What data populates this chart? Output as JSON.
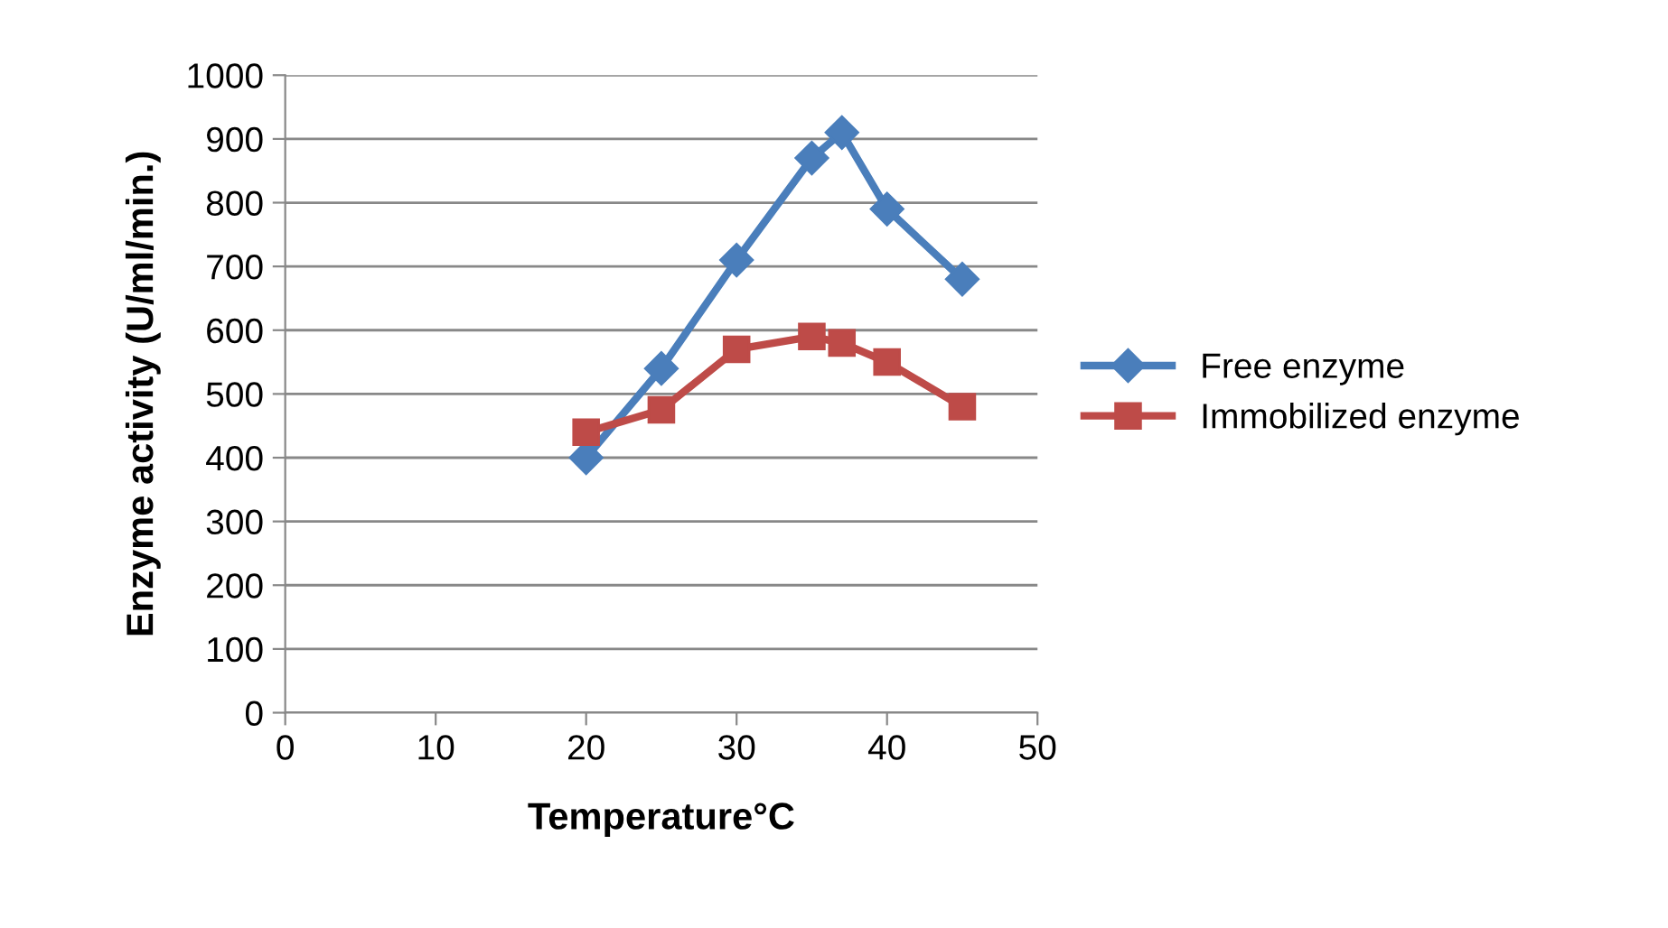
{
  "chart_data": {
    "type": "line",
    "xlabel": "Temperature°C",
    "ylabel": "Enzyme activity (U/ml/min.)",
    "xlim": [
      0,
      50
    ],
    "xticks": [
      0,
      10,
      20,
      30,
      40,
      50
    ],
    "ylim": [
      0,
      1000
    ],
    "yticks": [
      0,
      100,
      200,
      300,
      400,
      500,
      600,
      700,
      800,
      900,
      1000
    ],
    "grid": "y",
    "legend": "right",
    "line_style": "solid",
    "series": [
      {
        "name": "Free enzyme",
        "color": "#4a7ebb",
        "marker": "diamond",
        "x": [
          20,
          25,
          30,
          35,
          37,
          40,
          45
        ],
        "values": [
          400,
          540,
          710,
          870,
          910,
          790,
          680
        ]
      },
      {
        "name": "Immobilized enzyme",
        "color": "#be4b48",
        "marker": "square",
        "x": [
          20,
          25,
          30,
          35,
          37,
          40,
          45
        ],
        "values": [
          440,
          475,
          570,
          590,
          580,
          550,
          480
        ]
      }
    ]
  }
}
